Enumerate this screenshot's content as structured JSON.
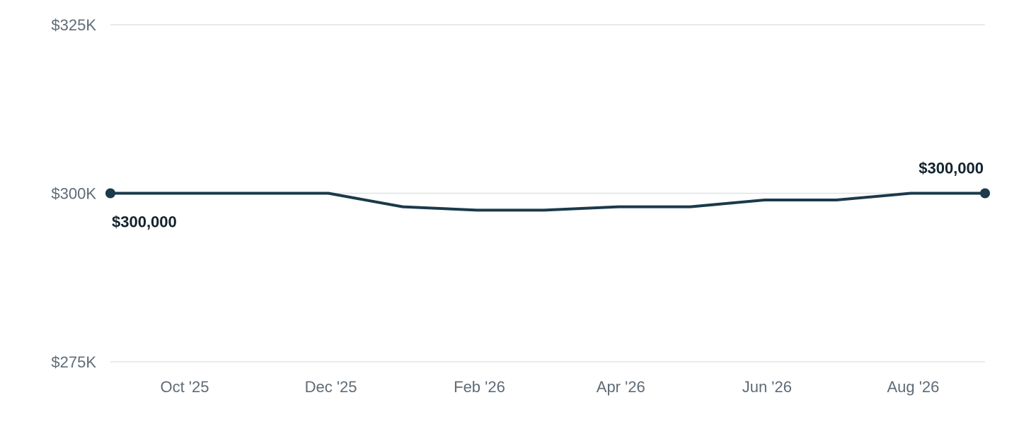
{
  "colors": {
    "series": "#1b3a4b",
    "grid": "#dfe3e7",
    "tick_text": "#5f6b76",
    "label_text": "#14232e"
  },
  "chart_data": {
    "type": "line",
    "title": "",
    "xlabel": "",
    "ylabel": "",
    "ylim": [
      275000,
      325000
    ],
    "y_ticks": [
      {
        "value": 325000,
        "label": "$325K"
      },
      {
        "value": 300000,
        "label": "$300K"
      },
      {
        "value": 275000,
        "label": "$275K"
      }
    ],
    "x_ticks": [
      {
        "date": "2025-10",
        "label": "Oct '25"
      },
      {
        "date": "2025-12",
        "label": "Dec '25"
      },
      {
        "date": "2026-02",
        "label": "Feb '26"
      },
      {
        "date": "2026-04",
        "label": "Apr '26"
      },
      {
        "date": "2026-06",
        "label": "Jun '26"
      },
      {
        "date": "2026-08",
        "label": "Aug '26"
      }
    ],
    "grid": true,
    "series": [
      {
        "x": [
          "2025-08-31",
          "2025-09-30",
          "2025-10-31",
          "2025-11-30",
          "2025-12-31",
          "2026-01-31",
          "2026-02-28",
          "2026-03-31",
          "2026-04-30",
          "2026-05-31",
          "2026-06-30",
          "2026-07-31",
          "2026-08-31"
        ],
        "values": [
          300000,
          300000,
          300000,
          300000,
          298000,
          297500,
          297500,
          298000,
          298000,
          299000,
          299000,
          300000,
          300000
        ]
      }
    ],
    "annotations": [
      {
        "point": "first",
        "label": "$300,000",
        "position": "below-right"
      },
      {
        "point": "last",
        "label": "$300,000",
        "position": "above-left"
      }
    ]
  }
}
